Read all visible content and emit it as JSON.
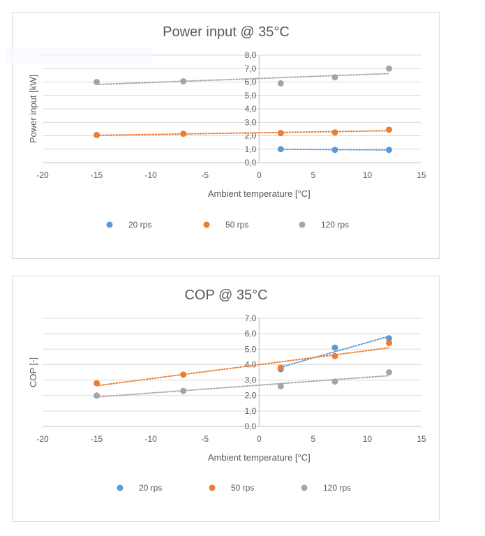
{
  "chart_data": [
    {
      "type": "scatter",
      "title": "Power input @ 35°C",
      "xlabel": "Ambient temperature [°C]",
      "ylabel": "Power input [kW]",
      "xlim": [
        -20,
        15
      ],
      "ylim": [
        0,
        8
      ],
      "xticks": [
        -20,
        -15,
        -10,
        -5,
        0,
        5,
        10,
        15
      ],
      "yticks": [
        0,
        1,
        2,
        3,
        4,
        5,
        6,
        7,
        8
      ],
      "x_tick_labels": [
        "-20",
        "-15",
        "-10",
        "-5",
        "0",
        "5",
        "10",
        "15"
      ],
      "y_tick_labels": [
        "0,0",
        "1,0",
        "2,0",
        "3,0",
        "4,0",
        "5,0",
        "6,0",
        "7,0",
        "8,0"
      ],
      "grid": true,
      "trendlines": "linear, dotted",
      "series": [
        {
          "name": "20 rps",
          "color": "#5b9bd5",
          "x": [
            2,
            7,
            12
          ],
          "y": [
            1.0,
            0.95,
            0.95
          ]
        },
        {
          "name": "50 rps",
          "color": "#ed7d31",
          "x": [
            -15,
            -7,
            2,
            7,
            12
          ],
          "y": [
            2.05,
            2.15,
            2.2,
            2.25,
            2.45
          ]
        },
        {
          "name": "120 rps",
          "color": "#a5a5a5",
          "x": [
            -15,
            -7,
            2,
            7,
            12
          ],
          "y": [
            6.0,
            6.05,
            5.9,
            6.35,
            7.0
          ]
        }
      ]
    },
    {
      "type": "scatter",
      "title": "COP @ 35°C",
      "xlabel": "Ambient temperature [°C]",
      "ylabel": "COP [-]",
      "xlim": [
        -20,
        15
      ],
      "ylim": [
        0,
        7
      ],
      "xticks": [
        -20,
        -15,
        -10,
        -5,
        0,
        5,
        10,
        15
      ],
      "yticks": [
        0,
        1,
        2,
        3,
        4,
        5,
        6,
        7
      ],
      "x_tick_labels": [
        "-20",
        "-15",
        "-10",
        "-5",
        "0",
        "5",
        "10",
        "15"
      ],
      "y_tick_labels": [
        "0,0",
        "1,0",
        "2,0",
        "3,0",
        "4,0",
        "5,0",
        "6,0",
        "7,0"
      ],
      "grid": true,
      "trendlines": "linear, dotted",
      "series": [
        {
          "name": "20 rps",
          "color": "#5b9bd5",
          "x": [
            2,
            7,
            12
          ],
          "y": [
            3.7,
            5.1,
            5.7
          ]
        },
        {
          "name": "50 rps",
          "color": "#ed7d31",
          "x": [
            -15,
            -7,
            2,
            7,
            12
          ],
          "y": [
            2.8,
            3.35,
            3.8,
            4.55,
            5.4
          ]
        },
        {
          "name": "120 rps",
          "color": "#a5a5a5",
          "x": [
            -15,
            -7,
            2,
            7,
            12
          ],
          "y": [
            2.0,
            2.3,
            2.6,
            2.9,
            3.5
          ]
        }
      ]
    }
  ]
}
